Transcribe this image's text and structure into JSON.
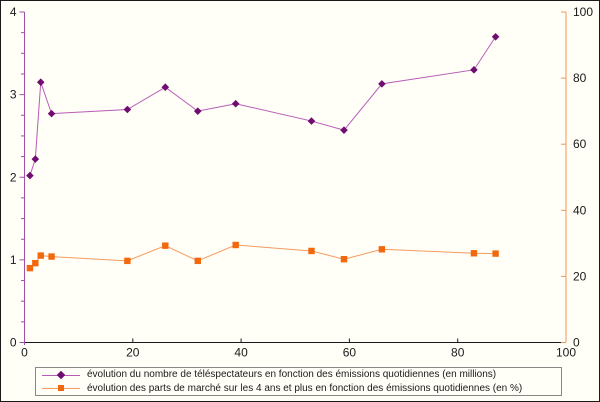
{
  "chart_data": {
    "type": "line",
    "title": "",
    "x": [
      1,
      2,
      3,
      5,
      19,
      26,
      32,
      39,
      53,
      59,
      66,
      83,
      87
    ],
    "series": [
      {
        "name": "évolution du nombre de téléspectateurs en fonction des émissions quotidiennes (en millions)",
        "axis": "left",
        "marker": "diamond",
        "line_color": "#b85cb8",
        "marker_color": "#700d70",
        "values": [
          2.02,
          2.22,
          3.15,
          2.77,
          2.82,
          3.09,
          2.8,
          2.89,
          2.68,
          2.57,
          3.13,
          3.3,
          3.7
        ]
      },
      {
        "name": "évolution des parts de marché sur les 4 ans et plus en fonction des émissions quotidiennes (en %)",
        "axis": "right",
        "marker": "square",
        "line_color": "#f59b5e",
        "marker_color": "#f2680d",
        "values": [
          22.5,
          24.0,
          26.3,
          26.0,
          24.7,
          29.3,
          24.7,
          29.5,
          27.7,
          25.2,
          28.2,
          27.0,
          26.9
        ]
      }
    ],
    "x_axis": {
      "min": 0,
      "max": 100,
      "ticks": [
        0,
        20,
        40,
        60,
        80,
        100
      ],
      "tick_labels": [
        "0",
        "20",
        "40",
        "60",
        "80",
        "100"
      ],
      "color": "#1a1a1a"
    },
    "y_axis_left": {
      "min": 0,
      "max": 4,
      "ticks": [
        0,
        1,
        2,
        3,
        4
      ],
      "tick_labels": [
        "0",
        "1",
        "2",
        "3",
        "4"
      ],
      "minor_step": 0.25,
      "color": "#a050a8"
    },
    "y_axis_right": {
      "min": 0,
      "max": 100,
      "ticks": [
        0,
        20,
        40,
        60,
        80,
        100
      ],
      "tick_labels": [
        "0",
        "20",
        "40",
        "60",
        "80",
        "100"
      ],
      "color": "#f0965a"
    },
    "grid": false,
    "legend_position": "bottom",
    "label_color": "#1a1a1a",
    "background": "#fffef7"
  }
}
